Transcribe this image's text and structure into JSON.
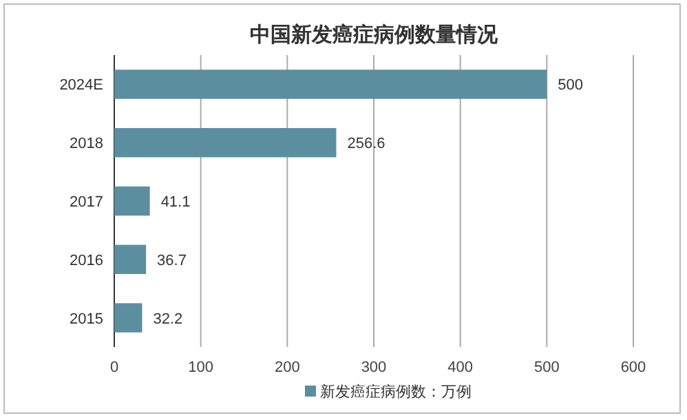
{
  "chart_data": {
    "type": "bar",
    "orientation": "horizontal",
    "title": "中国新发癌症病例数量情况",
    "categories": [
      "2024E",
      "2018",
      "2017",
      "2016",
      "2015"
    ],
    "series": [
      {
        "name": "新发癌症病例数：万例",
        "color": "#5b8fa0",
        "values": [
          500,
          256.6,
          41.1,
          36.7,
          32.2
        ]
      }
    ],
    "xlim": [
      0,
      600
    ],
    "xticks": [
      0,
      100,
      200,
      300,
      400,
      500,
      600
    ],
    "grid": "x",
    "legend": "bottom",
    "data_labels": true
  }
}
